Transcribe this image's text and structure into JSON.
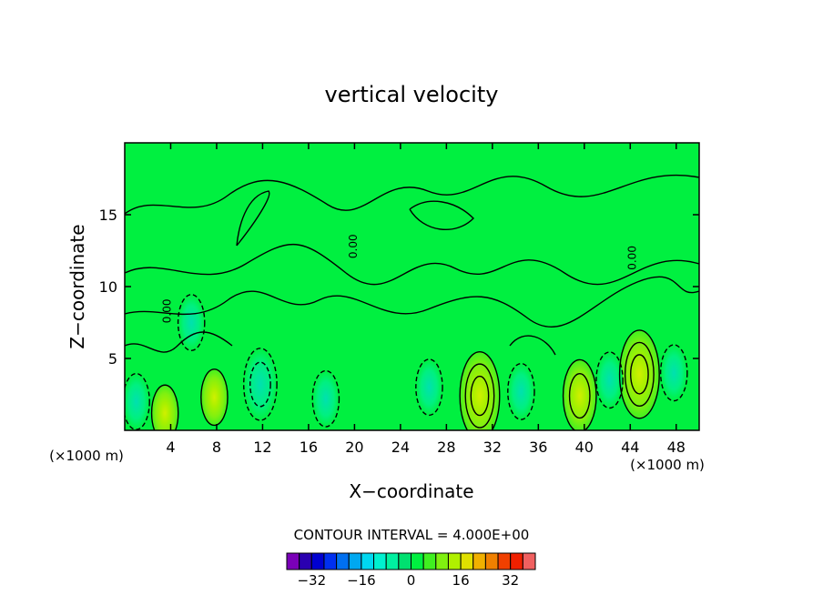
{
  "chart_data": {
    "type": "heatmap",
    "title": "vertical velocity",
    "xlabel": "X−coordinate",
    "ylabel": "Z−coordinate",
    "x_unit_left": "(×1000 m)",
    "x_unit_right": "(×1000 m)",
    "xlim": [
      0,
      50
    ],
    "ylim": [
      0,
      20
    ],
    "x_ticks": [
      4,
      8,
      12,
      16,
      20,
      24,
      28,
      32,
      36,
      40,
      44,
      48
    ],
    "y_ticks": [
      5,
      10,
      15
    ],
    "contour_interval_label": "CONTOUR INTERVAL = 4.000E+00",
    "contour_labels": [
      {
        "text": "0.00",
        "x": 4,
        "y": 8.3
      },
      {
        "text": "0.00",
        "x": 20.2,
        "y": 12.8
      },
      {
        "text": "0.00",
        "x": 44.5,
        "y": 12
      }
    ],
    "colorbar": {
      "levels": [
        -40,
        -36,
        -32,
        -28,
        -24,
        -20,
        -16,
        -12,
        -8,
        -4,
        0,
        4,
        8,
        12,
        16,
        20,
        24,
        28,
        32,
        36,
        40
      ],
      "colors": [
        "#7a00b8",
        "#2a00b0",
        "#0000d0",
        "#0030f0",
        "#0070f0",
        "#00a8f0",
        "#00d8f0",
        "#00f0d0",
        "#00f0a0",
        "#00e070",
        "#00f040",
        "#40f020",
        "#80f010",
        "#b0f000",
        "#e0e000",
        "#f0b000",
        "#f08000",
        "#f04000",
        "#f02000",
        "#f06060"
      ],
      "tick_labels": [
        "−32",
        "−16",
        "0",
        "16",
        "32"
      ],
      "tick_values": [
        -32,
        -16,
        0,
        16,
        32
      ]
    },
    "features": [
      {
        "kind": "updraft",
        "x": 30.9,
        "z": 2.4,
        "peak": 12
      },
      {
        "kind": "updraft",
        "x": 44.8,
        "z": 3.9,
        "peak": 12
      },
      {
        "kind": "updraft",
        "x": 7.8,
        "z": 2.3,
        "peak": 4
      },
      {
        "kind": "updraft",
        "x": 39.6,
        "z": 2.4,
        "peak": 8
      },
      {
        "kind": "updraft",
        "x": 3.5,
        "z": 1.2,
        "peak": 4
      },
      {
        "kind": "downdraft",
        "x": 11.8,
        "z": 3.2,
        "peak": -8
      },
      {
        "kind": "downdraft",
        "x": 17.5,
        "z": 2.2,
        "peak": -4
      },
      {
        "kind": "downdraft",
        "x": 26.5,
        "z": 3.0,
        "peak": -4
      },
      {
        "kind": "downdraft",
        "x": 34.5,
        "z": 2.7,
        "peak": -4
      },
      {
        "kind": "downdraft",
        "x": 42.2,
        "z": 3.5,
        "peak": -4
      },
      {
        "kind": "downdraft",
        "x": 47.8,
        "z": 4.0,
        "peak": -4
      },
      {
        "kind": "downdraft",
        "x": 1.0,
        "z": 2.0,
        "peak": -4
      },
      {
        "kind": "downdraft",
        "x": 5.8,
        "z": 7.5,
        "peak": -4
      }
    ]
  }
}
